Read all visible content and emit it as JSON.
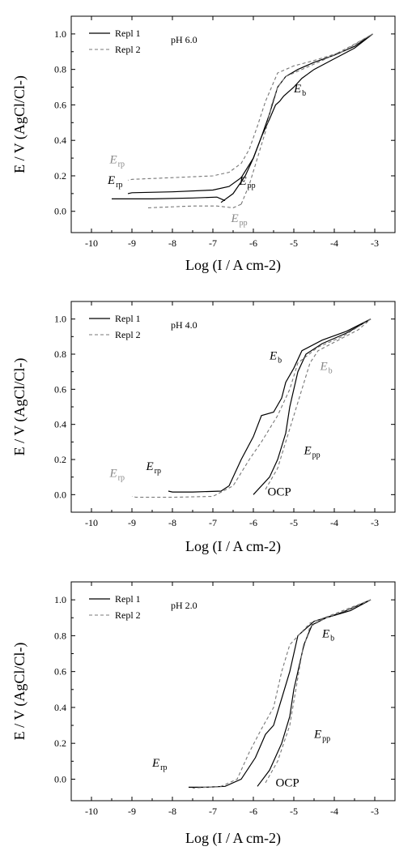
{
  "chart_data": [
    {
      "type": "line",
      "panel_label": "pH 6.0",
      "xlabel": "Log (I / A cm-2)",
      "ylabel": "E / V (AgCl/Cl-)",
      "xlim": [
        -10.5,
        -2.5
      ],
      "ylim": [
        -0.12,
        1.1
      ],
      "xticks": [
        "-10",
        "-9",
        "-8",
        "-7",
        "-6",
        "-5",
        "-4",
        "-3"
      ],
      "yticks": [
        "0.0",
        "0.2",
        "0.4",
        "0.6",
        "0.8",
        "1.0"
      ],
      "legend": {
        "location": "top-left",
        "entries": [
          "Repl 1",
          "Repl 2"
        ]
      },
      "series": [
        {
          "name": "Repl 1",
          "style": "solid",
          "forward": [
            [
              -6.8,
              0.05
            ],
            [
              -6.5,
              0.1
            ],
            [
              -6.2,
              0.2
            ],
            [
              -6.0,
              0.3
            ],
            [
              -5.8,
              0.42
            ],
            [
              -5.6,
              0.52
            ],
            [
              -5.45,
              0.6
            ],
            [
              -5.35,
              0.62
            ],
            [
              -5.25,
              0.65
            ],
            [
              -5.1,
              0.68
            ],
            [
              -5.0,
              0.7
            ],
            [
              -4.8,
              0.75
            ],
            [
              -4.5,
              0.8
            ],
            [
              -4.0,
              0.86
            ],
            [
              -3.5,
              0.92
            ],
            [
              -3.05,
              1.0
            ]
          ],
          "reverse": [
            [
              -3.05,
              1.0
            ],
            [
              -3.5,
              0.93
            ],
            [
              -4.0,
              0.88
            ],
            [
              -4.5,
              0.84
            ],
            [
              -4.9,
              0.8
            ],
            [
              -5.2,
              0.76
            ],
            [
              -5.4,
              0.7
            ],
            [
              -5.6,
              0.55
            ],
            [
              -5.8,
              0.42
            ],
            [
              -6.0,
              0.3
            ],
            [
              -6.3,
              0.19
            ],
            [
              -6.6,
              0.14
            ],
            [
              -7.0,
              0.12
            ],
            [
              -8.0,
              0.11
            ],
            [
              -9.0,
              0.105
            ],
            [
              -9.1,
              0.1
            ]
          ],
          "cathodic": [
            [
              -9.5,
              0.07
            ],
            [
              -8.5,
              0.07
            ],
            [
              -7.5,
              0.075
            ],
            [
              -6.9,
              0.08
            ],
            [
              -6.7,
              0.06
            ]
          ]
        },
        {
          "name": "Repl 2",
          "style": "dashed",
          "forward": [
            [
              -6.3,
              0.04
            ],
            [
              -6.1,
              0.15
            ],
            [
              -5.9,
              0.3
            ],
            [
              -5.7,
              0.45
            ],
            [
              -5.55,
              0.6
            ],
            [
              -5.4,
              0.7
            ],
            [
              -5.2,
              0.76
            ],
            [
              -4.8,
              0.8
            ],
            [
              -4.2,
              0.86
            ],
            [
              -3.6,
              0.93
            ],
            [
              -3.05,
              1.0
            ]
          ],
          "reverse": [
            [
              -3.05,
              1.0
            ],
            [
              -3.8,
              0.9
            ],
            [
              -4.5,
              0.85
            ],
            [
              -5.0,
              0.82
            ],
            [
              -5.4,
              0.78
            ],
            [
              -5.7,
              0.62
            ],
            [
              -5.9,
              0.48
            ],
            [
              -6.1,
              0.35
            ],
            [
              -6.3,
              0.27
            ],
            [
              -6.6,
              0.22
            ],
            [
              -7.0,
              0.2
            ],
            [
              -8.0,
              0.19
            ],
            [
              -9.0,
              0.18
            ],
            [
              -9.1,
              0.175
            ]
          ],
          "cathodic": [
            [
              -8.6,
              0.02
            ],
            [
              -7.5,
              0.03
            ],
            [
              -6.9,
              0.03
            ],
            [
              -6.5,
              0.02
            ],
            [
              -6.3,
              0.04
            ]
          ]
        }
      ],
      "annotations": [
        {
          "main": "E",
          "sub": "b",
          "color": "#000000",
          "x": -5.0,
          "y": 0.67
        },
        {
          "main": "E",
          "sub": "rp",
          "color": "#888888",
          "x": -9.55,
          "y": 0.27
        },
        {
          "main": "E",
          "sub": "rp",
          "color": "#000000",
          "x": -9.6,
          "y": 0.155
        },
        {
          "main": "E",
          "sub": "pp",
          "color": "#000000",
          "x": -6.35,
          "y": 0.15
        },
        {
          "main": "E",
          "sub": "pp",
          "color": "#888888",
          "x": -6.55,
          "y": -0.06
        }
      ]
    },
    {
      "type": "line",
      "panel_label": "pH 4.0",
      "xlabel": "Log (I / A cm-2)",
      "ylabel": "E / V (AgCl/Cl-)",
      "xlim": [
        -10.5,
        -2.5
      ],
      "ylim": [
        -0.1,
        1.1
      ],
      "xticks": [
        "-10",
        "-9",
        "-8",
        "-7",
        "-6",
        "-5",
        "-4",
        "-3"
      ],
      "yticks": [
        "0.0",
        "0.2",
        "0.4",
        "0.6",
        "0.8",
        "1.0"
      ],
      "legend": {
        "location": "top-left",
        "entries": [
          "Repl 1",
          "Repl 2"
        ]
      },
      "series": [
        {
          "name": "Repl 1",
          "style": "solid",
          "forward": [
            [
              -6.0,
              0.0
            ],
            [
              -5.6,
              0.1
            ],
            [
              -5.4,
              0.2
            ],
            [
              -5.2,
              0.35
            ],
            [
              -5.1,
              0.5
            ],
            [
              -5.0,
              0.6
            ],
            [
              -4.9,
              0.7
            ],
            [
              -4.7,
              0.8
            ],
            [
              -4.3,
              0.86
            ],
            [
              -3.7,
              0.92
            ],
            [
              -3.1,
              1.0
            ]
          ],
          "reverse": [
            [
              -3.1,
              1.0
            ],
            [
              -3.7,
              0.93
            ],
            [
              -4.3,
              0.88
            ],
            [
              -4.8,
              0.82
            ],
            [
              -5.0,
              0.72
            ],
            [
              -5.2,
              0.64
            ],
            [
              -5.3,
              0.55
            ],
            [
              -5.5,
              0.47
            ],
            [
              -5.8,
              0.45
            ],
            [
              -6.0,
              0.33
            ],
            [
              -6.3,
              0.2
            ],
            [
              -6.6,
              0.05
            ],
            [
              -6.8,
              0.02
            ],
            [
              -7.5,
              0.015
            ],
            [
              -8.0,
              0.015
            ],
            [
              -8.1,
              0.02
            ]
          ]
        },
        {
          "name": "Repl 2",
          "style": "dashed",
          "forward": [
            [
              -5.7,
              0.03
            ],
            [
              -5.4,
              0.15
            ],
            [
              -5.2,
              0.3
            ],
            [
              -5.0,
              0.45
            ],
            [
              -4.8,
              0.6
            ],
            [
              -4.6,
              0.75
            ],
            [
              -4.4,
              0.82
            ],
            [
              -3.9,
              0.88
            ],
            [
              -3.4,
              0.94
            ],
            [
              -3.1,
              1.0
            ]
          ],
          "reverse": [
            [
              -3.1,
              1.0
            ],
            [
              -3.8,
              0.9
            ],
            [
              -4.4,
              0.84
            ],
            [
              -4.9,
              0.75
            ],
            [
              -5.1,
              0.6
            ],
            [
              -5.4,
              0.45
            ],
            [
              -5.8,
              0.3
            ],
            [
              -6.1,
              0.2
            ],
            [
              -6.5,
              0.05
            ],
            [
              -7.0,
              -0.01
            ],
            [
              -8.0,
              -0.015
            ],
            [
              -8.9,
              -0.015
            ],
            [
              -9.0,
              -0.01
            ]
          ]
        }
      ],
      "annotations": [
        {
          "main": "E",
          "sub": "b",
          "color": "#000000",
          "x": -5.6,
          "y": 0.77
        },
        {
          "main": "E",
          "sub": "b",
          "color": "#888888",
          "x": -4.35,
          "y": 0.71
        },
        {
          "main": "E",
          "sub": "pp",
          "color": "#000000",
          "x": -4.75,
          "y": 0.23
        },
        {
          "main": "OCP",
          "sub": "",
          "color": "#000000",
          "x": -5.65,
          "y": -0.005
        },
        {
          "main": "E",
          "sub": "rp",
          "color": "#000000",
          "x": -8.65,
          "y": 0.14
        },
        {
          "main": "E",
          "sub": "rp",
          "color": "#888888",
          "x": -9.55,
          "y": 0.1
        }
      ]
    },
    {
      "type": "line",
      "panel_label": "pH 2.0",
      "xlabel": "Log (I / A cm-2)",
      "ylabel": "E / V (AgCl/Cl-)",
      "xlim": [
        -10.5,
        -2.5
      ],
      "ylim": [
        -0.12,
        1.1
      ],
      "xticks": [
        "-10",
        "-9",
        "-8",
        "-7",
        "-6",
        "-5",
        "-4",
        "-3"
      ],
      "yticks": [
        "0.0",
        "0.2",
        "0.4",
        "0.6",
        "0.8",
        "1.0"
      ],
      "legend": {
        "location": "top-left",
        "entries": [
          "Repl 1",
          "Repl 2"
        ]
      },
      "series": [
        {
          "name": "Repl 1",
          "style": "solid",
          "forward": [
            [
              -5.9,
              -0.04
            ],
            [
              -5.6,
              0.05
            ],
            [
              -5.3,
              0.2
            ],
            [
              -5.1,
              0.35
            ],
            [
              -5.0,
              0.5
            ],
            [
              -4.9,
              0.6
            ],
            [
              -4.75,
              0.75
            ],
            [
              -4.55,
              0.86
            ],
            [
              -4.2,
              0.9
            ],
            [
              -3.6,
              0.94
            ],
            [
              -3.1,
              1.0
            ]
          ],
          "reverse": [
            [
              -3.1,
              1.0
            ],
            [
              -3.8,
              0.93
            ],
            [
              -4.5,
              0.88
            ],
            [
              -4.9,
              0.8
            ],
            [
              -5.1,
              0.6
            ],
            [
              -5.3,
              0.45
            ],
            [
              -5.5,
              0.3
            ],
            [
              -5.7,
              0.25
            ],
            [
              -5.95,
              0.12
            ],
            [
              -6.3,
              0.0
            ],
            [
              -6.7,
              -0.04
            ],
            [
              -7.2,
              -0.045
            ],
            [
              -7.6,
              -0.045
            ]
          ]
        },
        {
          "name": "Repl 2",
          "style": "dashed",
          "forward": [
            [
              -5.7,
              -0.02
            ],
            [
              -5.4,
              0.1
            ],
            [
              -5.1,
              0.3
            ],
            [
              -4.95,
              0.5
            ],
            [
              -4.8,
              0.7
            ],
            [
              -4.6,
              0.85
            ],
            [
              -4.2,
              0.9
            ],
            [
              -3.6,
              0.95
            ],
            [
              -3.1,
              1.0
            ]
          ],
          "reverse": [
            [
              -3.1,
              1.0
            ],
            [
              -3.9,
              0.93
            ],
            [
              -4.6,
              0.87
            ],
            [
              -5.1,
              0.75
            ],
            [
              -5.3,
              0.6
            ],
            [
              -5.5,
              0.4
            ],
            [
              -5.8,
              0.28
            ],
            [
              -6.1,
              0.15
            ],
            [
              -6.4,
              0.0
            ],
            [
              -6.8,
              -0.04
            ],
            [
              -7.5,
              -0.05
            ]
          ]
        }
      ],
      "annotations": [
        {
          "main": "E",
          "sub": "b",
          "color": "#000000",
          "x": -4.3,
          "y": 0.79
        },
        {
          "main": "E",
          "sub": "pp",
          "color": "#000000",
          "x": -4.5,
          "y": 0.23
        },
        {
          "main": "OCP",
          "sub": "",
          "color": "#000000",
          "x": -5.45,
          "y": -0.04
        },
        {
          "main": "E",
          "sub": "rp",
          "color": "#000000",
          "x": -8.5,
          "y": 0.07
        }
      ]
    }
  ]
}
